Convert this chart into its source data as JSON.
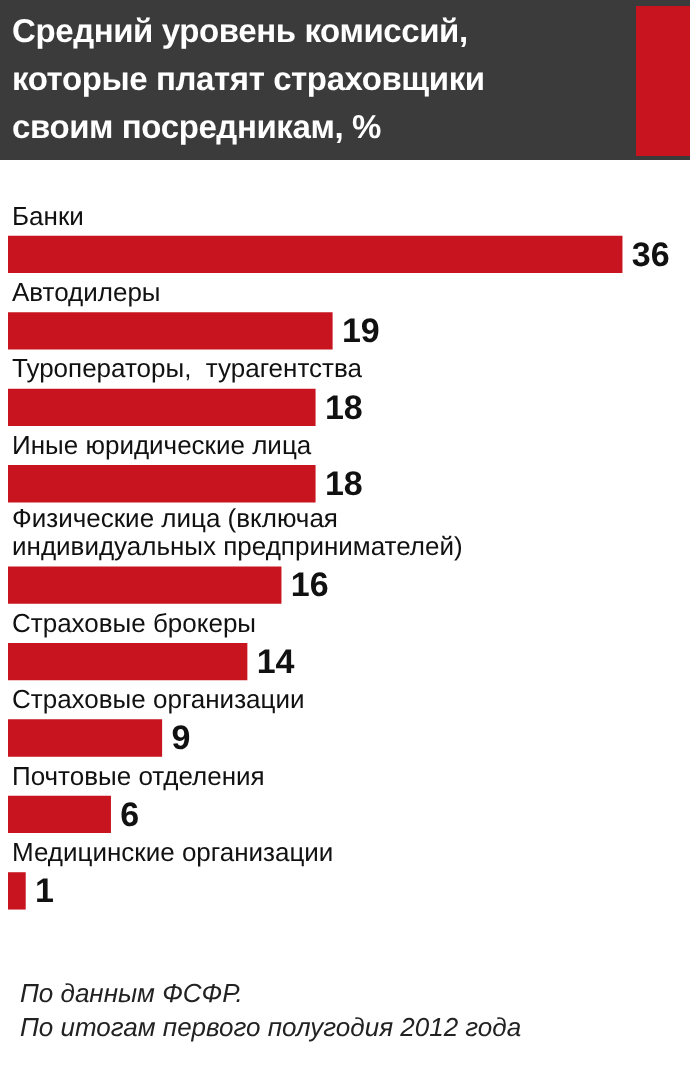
{
  "chart_data": {
    "type": "bar",
    "orientation": "horizontal",
    "title": "Средний уровень комиссий, которые платят страховщики своим посредникам, %",
    "categories": [
      "Банки",
      "Автодилеры",
      "Туроператоры,  турагентства",
      "Иные юридические лица",
      "Физические лица (включая индивидуальных предпринимателей)",
      "Страховые брокеры",
      "Страховые организации",
      "Почтовые отделения",
      "Медицинские организации"
    ],
    "values": [
      36,
      19,
      18,
      18,
      16,
      14,
      9,
      6,
      1
    ],
    "color": "#c8141e",
    "data_labels": true,
    "legend": false,
    "annotations": [
      "По данным ФСФР.",
      "По итогам первого полугодия 2012 года"
    ]
  }
}
